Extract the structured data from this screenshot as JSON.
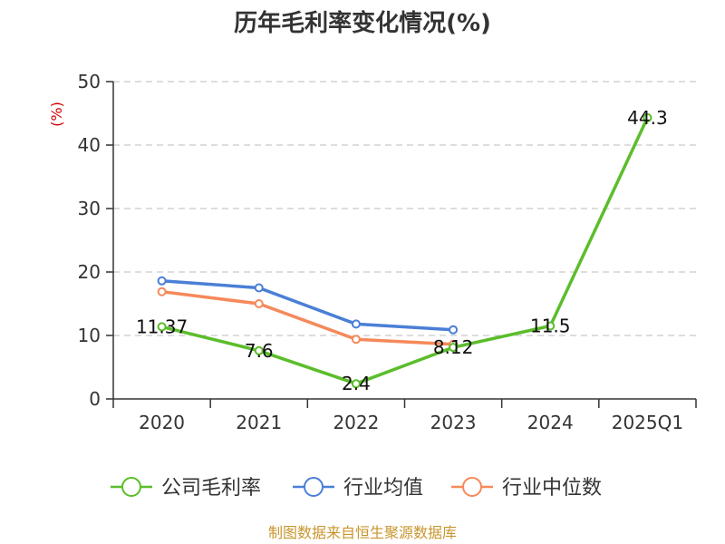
{
  "chart_data": {
    "type": "line",
    "title": "历年毛利率变化情况(%)",
    "ylabel": "(%)",
    "categories": [
      "2020",
      "2021",
      "2022",
      "2023",
      "2024",
      "2025Q1"
    ],
    "ylim": [
      0,
      50
    ],
    "yticks": [
      0,
      10,
      20,
      30,
      40,
      50
    ],
    "grid": true,
    "legend_position": "bottom",
    "series": [
      {
        "name": "公司毛利率",
        "color": "#5bbd2b",
        "values": [
          11.37,
          7.6,
          2.4,
          8.12,
          11.5,
          44.3
        ],
        "labels": [
          "11.37",
          "7.6",
          "2.4",
          "8.12",
          "11.5",
          "44.3"
        ]
      },
      {
        "name": "行业均值",
        "color": "#4a7fd6",
        "values": [
          18.6,
          17.5,
          11.8,
          10.9,
          null,
          null
        ]
      },
      {
        "name": "行业中位数",
        "color": "#f5895a",
        "values": [
          16.9,
          15.0,
          9.4,
          8.6,
          null,
          null
        ]
      }
    ],
    "source": "制图数据来自恒生聚源数据库"
  }
}
